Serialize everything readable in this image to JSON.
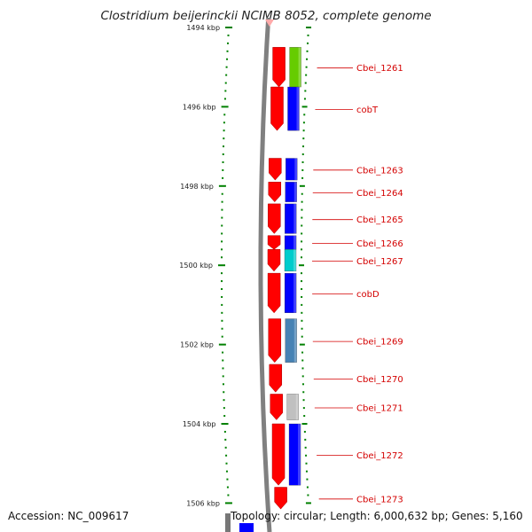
{
  "title": "Clostridium beijerinckii NCIMB 8052, complete genome",
  "accession": "Accession: NC_009617",
  "topology": "Topology: circular; Length: 6,000,632 bp; Genes: 5,160",
  "colors": {
    "red": "#ff0000",
    "blue": "#0000ff",
    "green": "#66cc00",
    "cyan": "#00cccc",
    "steel": "#4682b4",
    "grey": "#c0c0c0",
    "backbone": "#808080",
    "tick": "#008000",
    "label": "#d40000"
  },
  "axis": {
    "unit": "kbp",
    "ticks": [
      {
        "kbp": 1494,
        "label": "1494 kbp"
      },
      {
        "kbp": 1496,
        "label": "1496 kbp"
      },
      {
        "kbp": 1498,
        "label": "1498 kbp"
      },
      {
        "kbp": 1500,
        "label": "1500 kbp"
      },
      {
        "kbp": 1502,
        "label": "1502 kbp"
      },
      {
        "kbp": 1504,
        "label": "1504 kbp"
      },
      {
        "kbp": 1506,
        "label": "1506 kbp"
      }
    ]
  },
  "genes": [
    {
      "label": "Cbei_1261",
      "start": 1494.5,
      "end": 1495.5,
      "category_color": "green"
    },
    {
      "label": "cobT",
      "start": 1495.5,
      "end": 1496.6,
      "category_color": "blue"
    },
    {
      "label": "Cbei_1263",
      "start": 1497.3,
      "end": 1497.85,
      "category_color": "blue"
    },
    {
      "label": "Cbei_1264",
      "start": 1497.9,
      "end": 1498.4,
      "category_color": "blue"
    },
    {
      "label": "Cbei_1265",
      "start": 1498.45,
      "end": 1499.2,
      "category_color": "blue"
    },
    {
      "label": "Cbei_1266",
      "start": 1499.25,
      "end": 1499.6,
      "category_color": "blue"
    },
    {
      "label": "Cbei_1267",
      "start": 1499.6,
      "end": 1500.15,
      "category_color": "cyan"
    },
    {
      "label": "cobD",
      "start": 1500.2,
      "end": 1501.2,
      "category_color": "blue"
    },
    {
      "label": "Cbei_1269",
      "start": 1501.35,
      "end": 1502.45,
      "category_color": "steel"
    },
    {
      "label": "Cbei_1270",
      "start": 1502.5,
      "end": 1503.2,
      "category_color": null
    },
    {
      "label": "Cbei_1271",
      "start": 1503.25,
      "end": 1503.9,
      "category_color": "grey"
    },
    {
      "label": "Cbei_1272",
      "start": 1504.0,
      "end": 1505.55,
      "category_color": "blue"
    },
    {
      "label": "Cbei_1273",
      "start": 1505.6,
      "end": 1506.15,
      "category_color": null
    }
  ]
}
